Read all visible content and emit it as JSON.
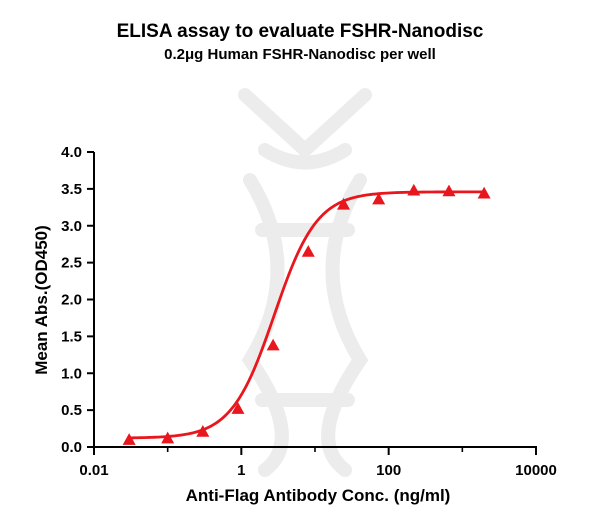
{
  "chart_data": {
    "type": "scatter",
    "title": "ELISA assay to evaluate FSHR-Nanodisc",
    "subtitle": "0.2μg Human FSHR-Nanodisc per well",
    "xlabel": "Anti-Flag Antibody Conc. (ng/ml)",
    "ylabel": "Mean Abs.(OD450)",
    "xscale": "log",
    "xlim": [
      0.01,
      10000
    ],
    "ylim": [
      0,
      4.0
    ],
    "x_ticks": [
      0.01,
      1,
      100,
      10000
    ],
    "x_tick_labels": [
      "0.01",
      "1",
      "100",
      "10000"
    ],
    "y_ticks": [
      0,
      0.5,
      1.0,
      1.5,
      2.0,
      2.5,
      3.0,
      3.5,
      4.0
    ],
    "y_tick_labels": [
      "0.0",
      "0.5",
      "1.0",
      "1.5",
      "2.0",
      "2.5",
      "3.0",
      "3.5",
      "4.0"
    ],
    "grid": false,
    "marker": "triangle",
    "color": "#e8161d",
    "series": [
      {
        "x": [
          0.03,
          0.1,
          0.3,
          0.9,
          2.7,
          8.1,
          24.4,
          73.2,
          219.5,
          658.4,
          1975.3
        ],
        "y": [
          0.1,
          0.12,
          0.21,
          0.52,
          1.38,
          2.65,
          3.29,
          3.36,
          3.48,
          3.47,
          3.44
        ]
      }
    ],
    "fit_curve": {
      "model": "4PL",
      "bottom": 0.12,
      "top": 3.46,
      "ec50": 2.8,
      "hill": 1.5
    }
  }
}
